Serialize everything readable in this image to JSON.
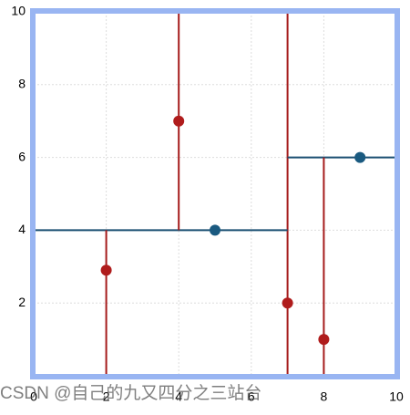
{
  "chart_data": {
    "type": "kdtree",
    "xlim": [
      0,
      10
    ],
    "ylim": [
      0,
      10
    ],
    "xticks": [
      0,
      2,
      4,
      6,
      8,
      10
    ],
    "yticks": [
      2,
      4,
      6,
      8,
      10
    ],
    "grid": true,
    "series": [
      {
        "color": "#b01c1c",
        "x": [
          2,
          4,
          7,
          8
        ],
        "values": [
          2.9,
          7,
          2,
          1
        ]
      },
      {
        "color": "#1a5a80",
        "x": [
          5,
          9
        ],
        "values": [
          4,
          6
        ]
      }
    ],
    "segments": [
      {
        "color": "#a51c1c",
        "x": [
          7,
          7
        ],
        "y": [
          0,
          10
        ]
      },
      {
        "color": "#1a4f72",
        "x": [
          0,
          7
        ],
        "y": [
          4,
          4
        ]
      },
      {
        "color": "#1a4f72",
        "x": [
          7,
          10
        ],
        "y": [
          6,
          6
        ]
      },
      {
        "color": "#a51c1c",
        "x": [
          4,
          4
        ],
        "y": [
          4,
          10
        ]
      },
      {
        "color": "#a51c1c",
        "x": [
          2,
          2
        ],
        "y": [
          0,
          4
        ]
      },
      {
        "color": "#a51c1c",
        "x": [
          8,
          8
        ],
        "y": [
          0,
          6
        ]
      }
    ],
    "border_color": "#99b5f2",
    "watermark": "CSDN @自己的九又四分之三站台"
  }
}
